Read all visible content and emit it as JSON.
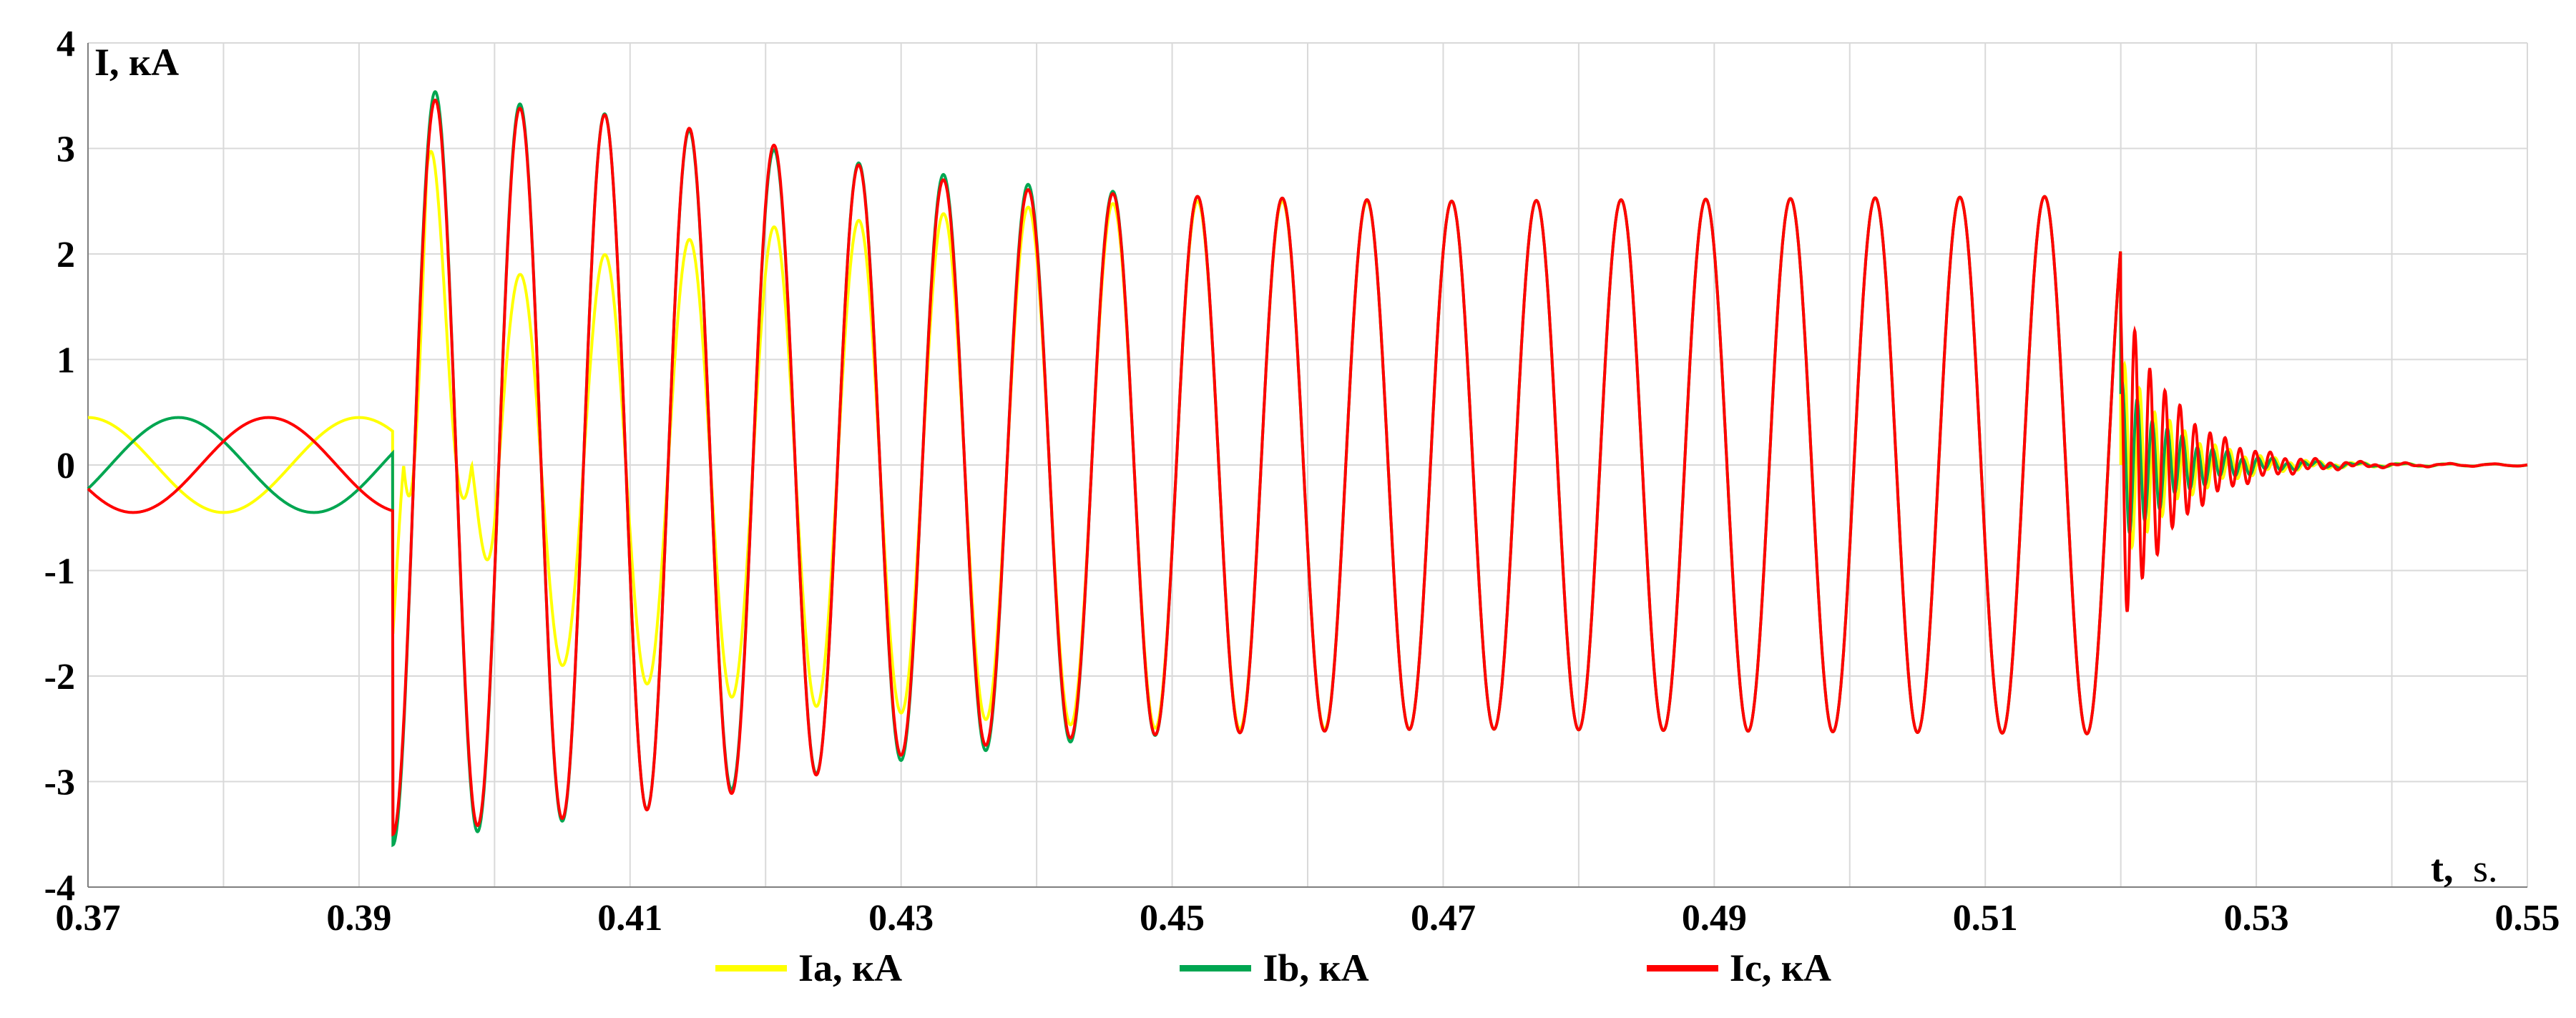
{
  "chart_data": {
    "type": "line",
    "title": "",
    "ylabel": "I, кА",
    "xlabel_main": "t,",
    "xlabel_unit": "s.",
    "xlim": [
      0.37,
      0.55
    ],
    "ylim": [
      -4,
      4
    ],
    "x_ticks": [
      "0.37",
      "0.39",
      "0.41",
      "0.43",
      "0.45",
      "0.47",
      "0.49",
      "0.51",
      "0.53",
      "0.55"
    ],
    "y_ticks": [
      "4",
      "3",
      "2",
      "1",
      "0",
      "-1",
      "-2",
      "-3",
      "-4"
    ],
    "grid": true,
    "legend_position": "bottom",
    "frequency_hz": 50,
    "x_gridlines": [
      0.37,
      0.38,
      0.39,
      0.4,
      0.41,
      0.42,
      0.43,
      0.44,
      0.45,
      0.46,
      0.47,
      0.48,
      0.49,
      0.5,
      0.51,
      0.52,
      0.53,
      0.54,
      0.55
    ],
    "series": [
      {
        "name": "Ia, кА",
        "color": "#ffff00",
        "phase_deg": -90,
        "prefault_amplitude": 0.45,
        "fault_start": 0.3925,
        "fault_clear": 0.52,
        "steady_amplitude": 2.55,
        "envelope_points": [
          [
            0.3925,
            1.6
          ],
          [
            0.395,
            -3.45
          ],
          [
            0.4,
            1.75
          ],
          [
            0.41,
            2.05
          ],
          [
            0.42,
            2.25
          ],
          [
            0.43,
            2.35
          ],
          [
            0.44,
            2.45
          ],
          [
            0.45,
            2.5
          ],
          [
            0.47,
            2.5
          ],
          [
            0.52,
            2.55
          ]
        ],
        "post_clear_amplitude": 1.0
      },
      {
        "name": "Ib, кА",
        "color": "#00a651",
        "phase_deg": 150,
        "prefault_amplitude": 0.45,
        "fault_start": 0.3925,
        "fault_clear": 0.52,
        "steady_amplitude": 2.55,
        "envelope_points": [
          [
            0.3925,
            3.6
          ],
          [
            0.4,
            3.45
          ],
          [
            0.41,
            3.3
          ],
          [
            0.42,
            3.0
          ],
          [
            0.43,
            2.8
          ],
          [
            0.44,
            2.65
          ],
          [
            0.45,
            2.55
          ],
          [
            0.47,
            2.5
          ],
          [
            0.52,
            2.55
          ]
        ],
        "post_clear_amplitude": 0.8
      },
      {
        "name": "Ic, кА",
        "color": "#ff0000",
        "phase_deg": 30,
        "prefault_amplitude": 0.45,
        "fault_start": 0.3925,
        "fault_clear": 0.52,
        "steady_amplitude": 2.55,
        "envelope_points": [
          [
            0.3925,
            3.5
          ],
          [
            0.4,
            3.4
          ],
          [
            0.41,
            3.3
          ],
          [
            0.42,
            3.05
          ],
          [
            0.43,
            2.75
          ],
          [
            0.44,
            2.6
          ],
          [
            0.45,
            2.55
          ],
          [
            0.47,
            2.5
          ],
          [
            0.52,
            2.55
          ]
        ],
        "post_clear_amplitude": 1.6
      }
    ]
  },
  "legend": {
    "items": [
      {
        "label": "Ia, кА",
        "color": "#ffff00"
      },
      {
        "label": "Ib, кА",
        "color": "#00a651"
      },
      {
        "label": "Ic, кА",
        "color": "#ff0000"
      }
    ]
  }
}
